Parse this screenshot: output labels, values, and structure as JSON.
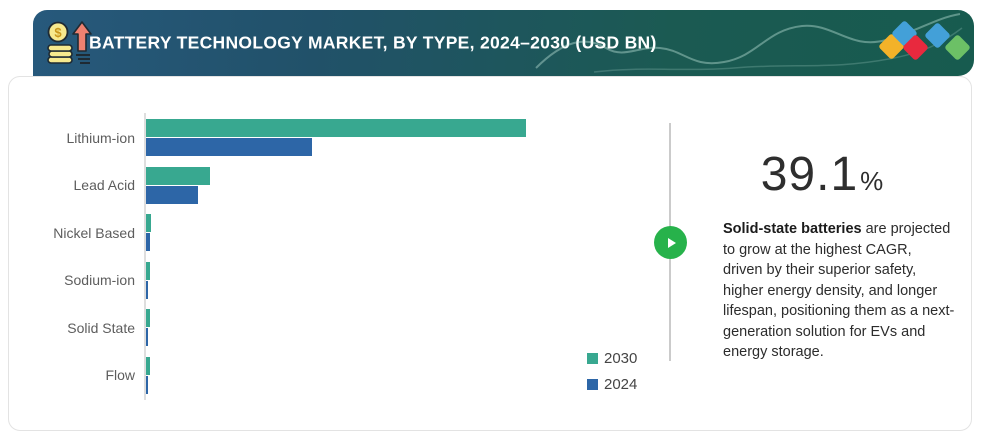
{
  "header": {
    "title": "BATTERY TECHNOLOGY MARKET, BY TYPE, 2024–2030 (USD BN)",
    "icon": "money-growth-icon",
    "logo_diamond_colors": [
      "#f3b229",
      "#43a0d8",
      "#e8293e",
      "#43a0d8",
      "#6cc066"
    ]
  },
  "chart_data": {
    "type": "bar",
    "orientation": "horizontal",
    "title": "Battery Technology Market, by Type, 2024–2030 (USD BN)",
    "categories": [
      "Lithium-ion",
      "Lead Acid",
      "Nickel Based",
      "Sodium-ion",
      "Solid State",
      "Flow"
    ],
    "series": [
      {
        "name": "2030",
        "color": "#38a890",
        "values": [
          100,
          16.8,
          1.4,
          1.0,
          1.0,
          1.0
        ]
      },
      {
        "name": "2024",
        "color": "#2d66a7",
        "values": [
          43.7,
          13.7,
          1.1,
          0.5,
          0.4,
          0.4
        ]
      }
    ],
    "value_units": "USD BN (no numeric axis shown; values are relative bar lengths, max bar = 100)",
    "xlabel": "",
    "ylabel": "",
    "grid": false,
    "legend_position": "bottom-right"
  },
  "insight": {
    "stat_value": "39.1",
    "stat_unit": "%",
    "lead_bold": "Solid-state batteries",
    "body": " are projected to grow at the highest CAGR, driven by their superior safety, higher energy density, and longer lifespan, positioning them as a next-generation solution for EVs and energy storage."
  }
}
